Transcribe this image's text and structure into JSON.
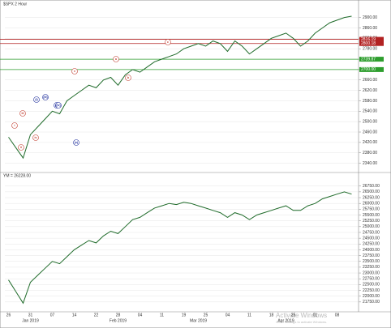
{
  "chart_data": [
    {
      "type": "line",
      "title": "$SPX 2 Hour",
      "color": "#1f6b2a",
      "values": [
        2440,
        2400,
        2360,
        2450,
        2480,
        2510,
        2540,
        2530,
        2580,
        2600,
        2620,
        2640,
        2630,
        2660,
        2670,
        2640,
        2680,
        2700,
        2690,
        2710,
        2730,
        2740,
        2750,
        2760,
        2780,
        2790,
        2800,
        2790,
        2810,
        2800,
        2770,
        2810,
        2790,
        2760,
        2780,
        2800,
        2820,
        2830,
        2840,
        2820,
        2790,
        2810,
        2840,
        2860,
        2880,
        2890,
        2900,
        2905
      ],
      "ylim": [
        2320,
        2930
      ],
      "yticks": [
        {
          "value": 2340,
          "label": "2340.00"
        },
        {
          "value": 2380,
          "label": "2380.00"
        },
        {
          "value": 2420,
          "label": "2420.00"
        },
        {
          "value": 2460,
          "label": "2460.00"
        },
        {
          "value": 2500,
          "label": "2500.00"
        },
        {
          "value": 2540,
          "label": "2540.00"
        },
        {
          "value": 2580,
          "label": "2580.00"
        },
        {
          "value": 2620,
          "label": "2620.00"
        },
        {
          "value": 2660,
          "label": "2660.00"
        },
        {
          "value": 2700,
          "label": "2700.00"
        },
        {
          "value": 2740,
          "label": "2740.00"
        },
        {
          "value": 2780,
          "label": "2780.00"
        },
        {
          "value": 2820,
          "label": "2820.00"
        },
        {
          "value": 2860,
          "label": "2860.00"
        },
        {
          "value": 2900,
          "label": "2900.00"
        }
      ],
      "levels": [
        {
          "value": 2816.19,
          "label": "2816.19",
          "color": "#b22222"
        },
        {
          "value": 2800.18,
          "label": "2800.18",
          "color": "#b22222"
        },
        {
          "value": 2739.87,
          "label": "2739.87",
          "color": "#2e9e2e"
        },
        {
          "value": 2700.0,
          "label": "2700.00",
          "color": "#2e9e2e"
        }
      ],
      "annotations": [
        "i",
        "ii",
        "iii",
        "iv",
        "v",
        "(i)",
        "(ii)",
        "(iii)",
        "(iv)",
        "(v)",
        "a",
        "b",
        "c"
      ],
      "grid": true
    },
    {
      "type": "line",
      "title": "YM = 26228.00",
      "color": "#1f6b2a",
      "values": [
        22700,
        22200,
        21700,
        22600,
        22900,
        23200,
        23500,
        23400,
        23700,
        24000,
        24200,
        24400,
        24300,
        24600,
        24800,
        24700,
        25000,
        25300,
        25400,
        25600,
        25800,
        25900,
        26000,
        25950,
        26050,
        26000,
        25900,
        25800,
        25700,
        25600,
        25400,
        25600,
        25500,
        25300,
        25500,
        25600,
        25700,
        25800,
        25900,
        25700,
        25700,
        25900,
        26000,
        26200,
        26300,
        26400,
        26500,
        26400
      ],
      "categories": [
        "26",
        null,
        null,
        "31",
        null,
        null,
        "07",
        null,
        null,
        "14",
        null,
        null,
        "22",
        null,
        null,
        "28",
        null,
        null,
        "04",
        null,
        null,
        "11",
        null,
        null,
        "19",
        null,
        null,
        "25",
        null,
        null,
        "04",
        null,
        null,
        "11",
        null,
        null,
        "18",
        null,
        null,
        "25",
        null,
        null,
        "01",
        null,
        null,
        "08",
        null,
        null
      ],
      "months": [
        "Jan 2019",
        "Feb 2019",
        "Mar 2019",
        "Apr 2019"
      ],
      "ylim": [
        21500,
        26950
      ],
      "yticks": [
        {
          "value": 21750,
          "label": "21750.00"
        },
        {
          "value": 22000,
          "label": "22000.00"
        },
        {
          "value": 22250,
          "label": "22250.00"
        },
        {
          "value": 22500,
          "label": "22500.00"
        },
        {
          "value": 22750,
          "label": "22750.00"
        },
        {
          "value": 23000,
          "label": "23000.00"
        },
        {
          "value": 23250,
          "label": "23250.00"
        },
        {
          "value": 23500,
          "label": "23500.00"
        },
        {
          "value": 23750,
          "label": "23750.00"
        },
        {
          "value": 24000,
          "label": "24000.00"
        },
        {
          "value": 24250,
          "label": "24250.00"
        },
        {
          "value": 24500,
          "label": "24500.00"
        },
        {
          "value": 24750,
          "label": "24750.00"
        },
        {
          "value": 25000,
          "label": "25000.00"
        },
        {
          "value": 25250,
          "label": "25250.00"
        },
        {
          "value": 25500,
          "label": "25500.00"
        },
        {
          "value": 25750,
          "label": "25750.00"
        },
        {
          "value": 26000,
          "label": "26000.00"
        },
        {
          "value": 26250,
          "label": "26250.00"
        },
        {
          "value": 26500,
          "label": "26500.00"
        },
        {
          "value": 26750,
          "label": "26750.00"
        }
      ],
      "grid": true
    }
  ],
  "watermark": [
    "Activate Windows",
    "Go to Settings to activate Windows."
  ]
}
